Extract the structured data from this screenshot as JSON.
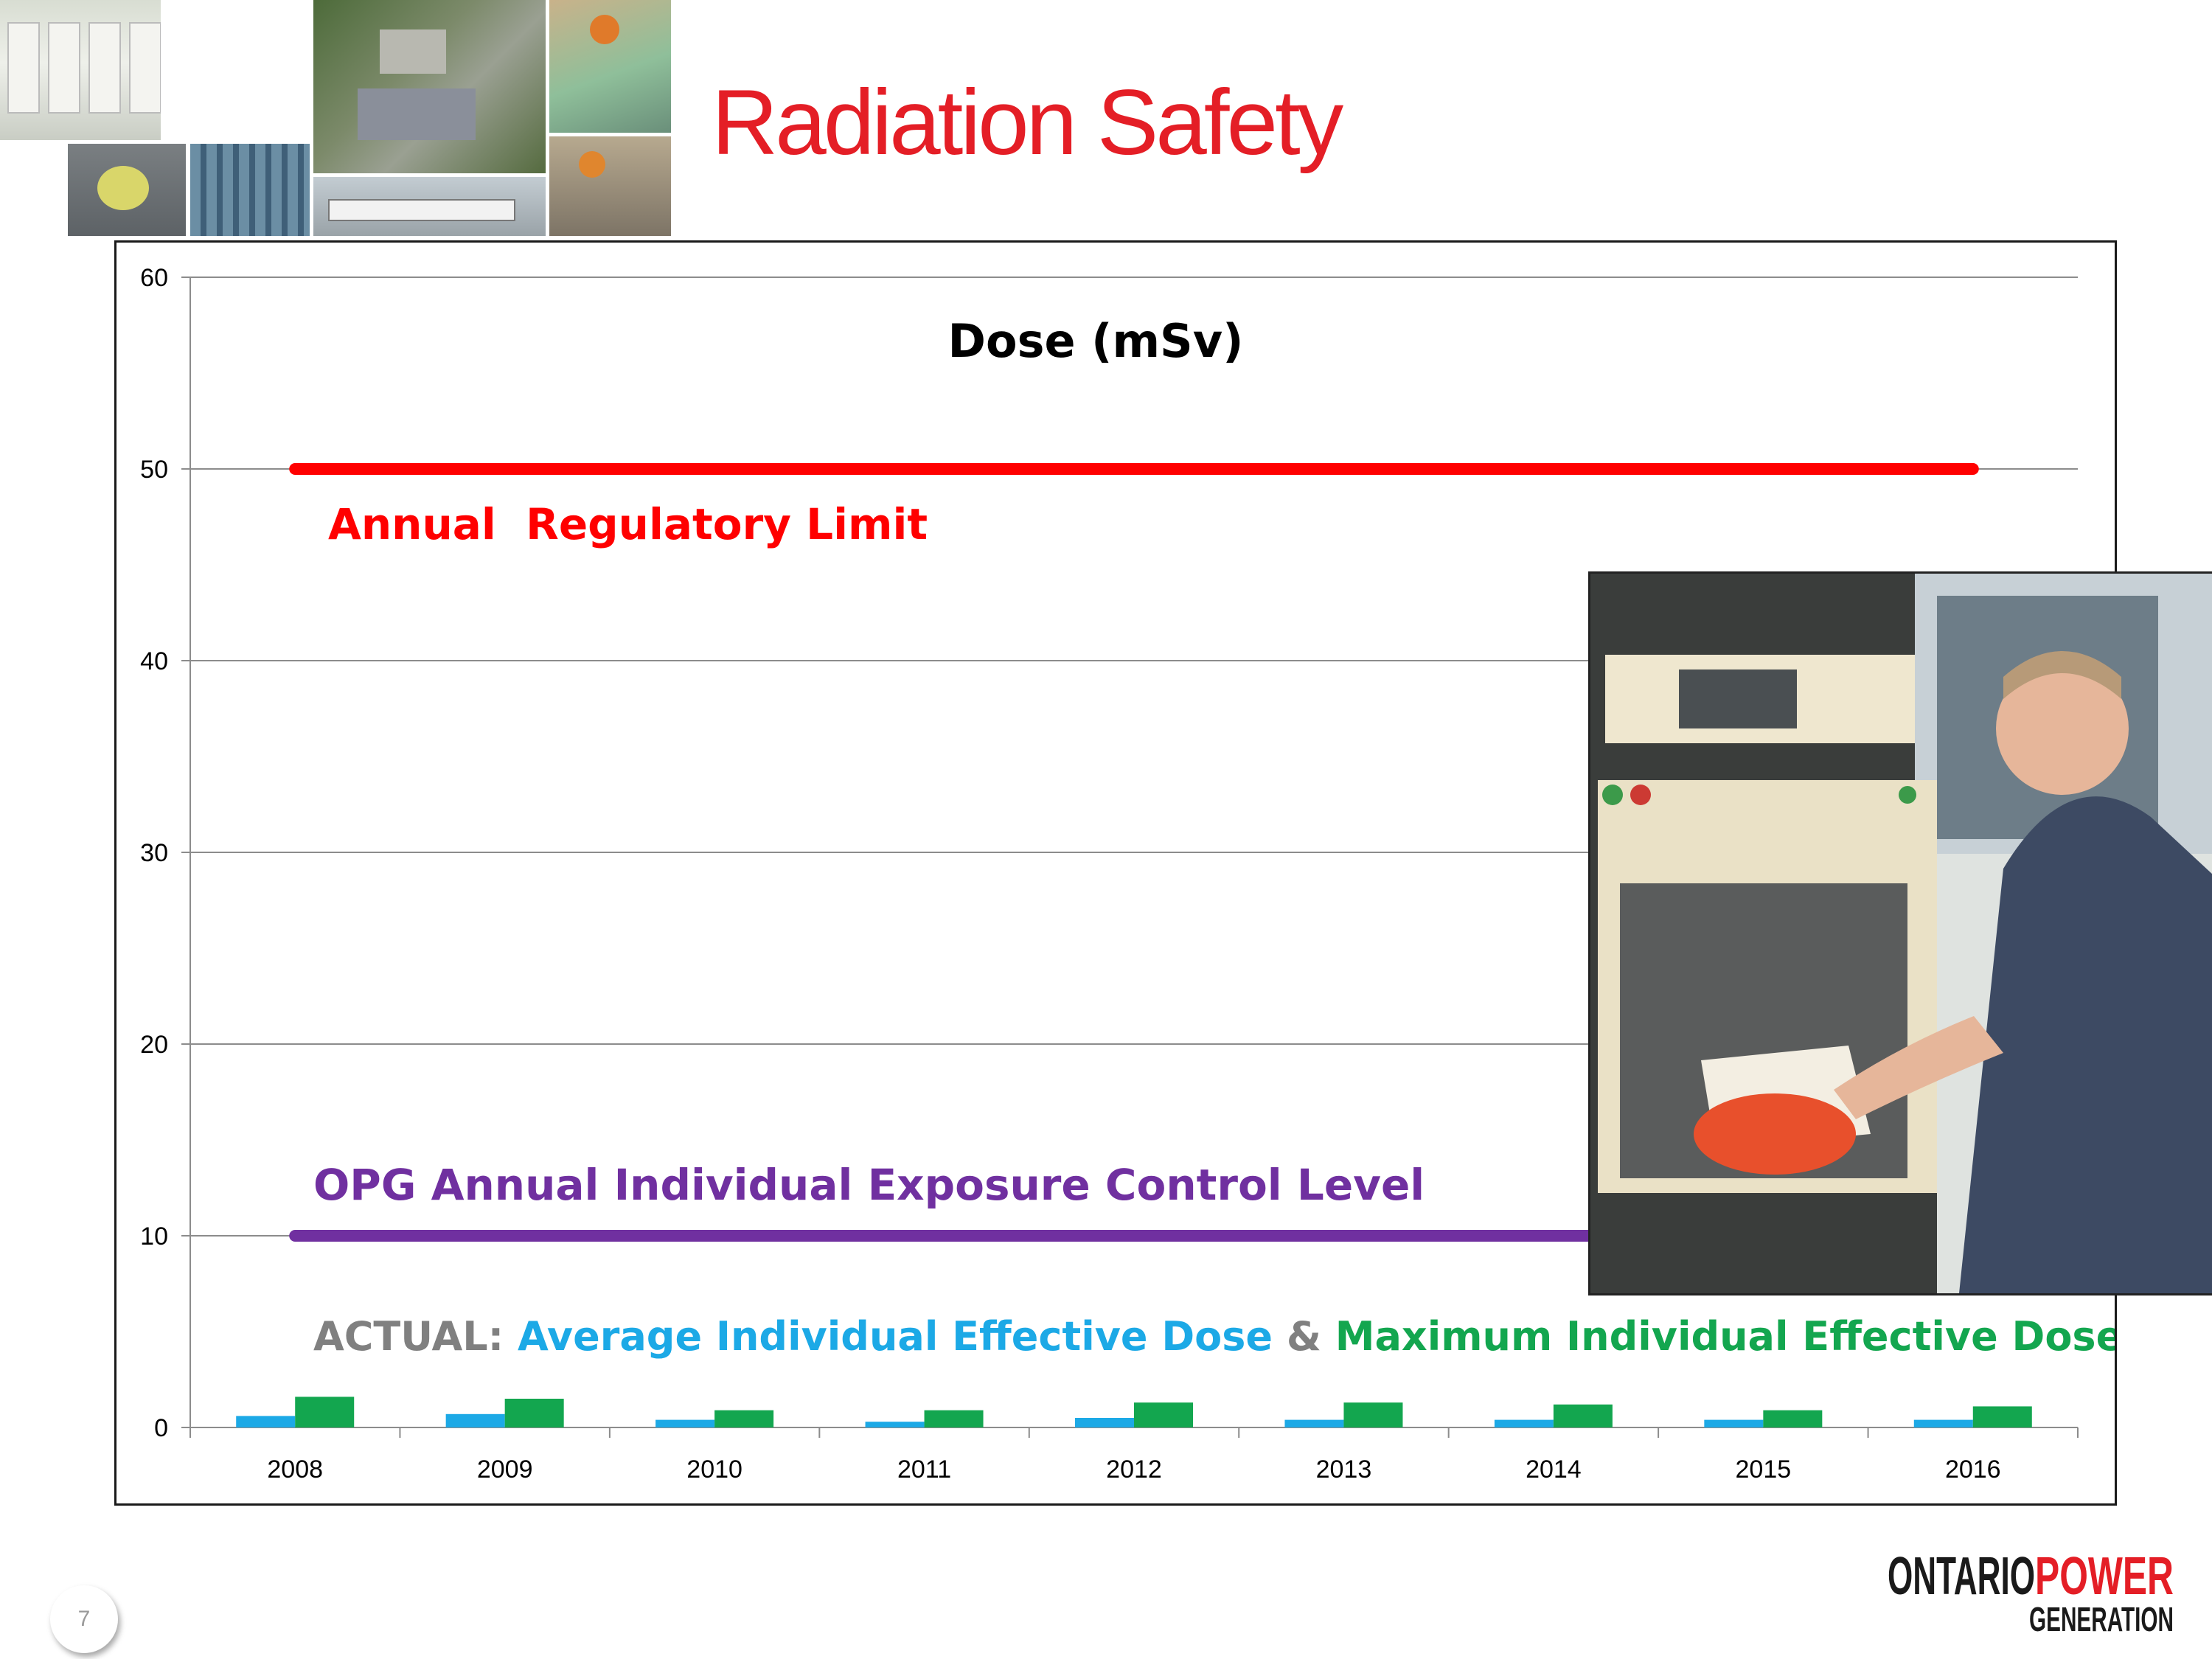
{
  "slide": {
    "title": "Radiation Safety",
    "page_number": "7",
    "logo": "ONTARIOPOWER GENERATION",
    "title_color": "#e41e26"
  },
  "chart_data": {
    "type": "bar",
    "title": "Dose (mSv)",
    "categories": [
      "2008",
      "2009",
      "2010",
      "2011",
      "2012",
      "2013",
      "2014",
      "2015",
      "2016"
    ],
    "ylim": [
      0,
      60
    ],
    "yticks": [
      0,
      10,
      20,
      30,
      40,
      50,
      60
    ],
    "grid": true,
    "series": [
      {
        "name": "Average Individual Effective Dose",
        "color": "#1ca9e6",
        "values": [
          0.6,
          0.7,
          0.4,
          0.3,
          0.5,
          0.4,
          0.4,
          0.4,
          0.4
        ]
      },
      {
        "name": "Maximum Individual Effective Dose",
        "color": "#13a64f",
        "values": [
          1.6,
          1.5,
          0.9,
          0.9,
          1.3,
          1.3,
          1.2,
          0.9,
          1.1
        ]
      }
    ],
    "reference_lines": [
      {
        "name": "Annual Regulatory Limit",
        "label": "Annual  Regulatory Limit",
        "value": 50,
        "color": "#ff0000"
      },
      {
        "name": "OPG Annual Individual Exposure Control Level",
        "label": "OPG Annual Individual Exposure Control Level",
        "value": 10,
        "color": "#7030a0"
      }
    ],
    "actual_label": {
      "prefix": "ACTUAL:",
      "avg": "Average Individual Effective Dose",
      "amp": "&",
      "max": "Maximum Individual Effective Dose",
      "prefix_color": "#808080",
      "avg_color": "#1ca9e6",
      "max_color": "#13a64f"
    }
  }
}
